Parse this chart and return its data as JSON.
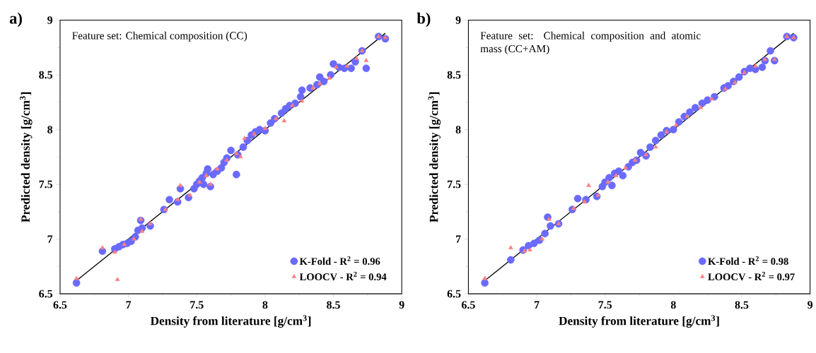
{
  "chart_data": [
    {
      "type": "scatter",
      "annotations": [
        "a)",
        "Feature set: Chemical composition (CC)"
      ],
      "xlabel": "Density from literature [g/cm$^{3}$]",
      "ylabel": "Predicted density [g/cm$^{3}$]",
      "xlim": [
        6.5,
        9
      ],
      "ylim": [
        6.5,
        9
      ],
      "xticks": [
        6.5,
        7,
        7.5,
        8,
        8.5,
        9
      ],
      "yticks": [
        6.5,
        7,
        7.5,
        8,
        8.5,
        9
      ],
      "legend": "bottom right",
      "series": [
        {
          "name": "K-Fold - R$^{2}$ = 0.96",
          "color": "#6a6aff",
          "marker": "circle",
          "x": [
            6.62,
            6.81,
            6.9,
            6.93,
            6.96,
            6.99,
            7.02,
            7.05,
            7.07,
            7.09,
            7.1,
            7.16,
            7.26,
            7.3,
            7.36,
            7.38,
            7.44,
            7.48,
            7.5,
            7.52,
            7.54,
            7.55,
            7.57,
            7.58,
            7.6,
            7.62,
            7.65,
            7.68,
            7.7,
            7.72,
            7.75,
            7.79,
            7.8,
            7.84,
            7.87,
            7.9,
            7.93,
            7.96,
            8.0,
            8.04,
            8.07,
            8.12,
            8.15,
            8.18,
            8.22,
            8.26,
            8.27,
            8.33,
            8.38,
            8.4,
            8.43,
            8.48,
            8.5,
            8.54,
            8.58,
            8.63,
            8.66,
            8.71,
            8.74,
            8.83,
            8.88
          ],
          "values": [
            6.6,
            6.89,
            6.91,
            6.93,
            6.95,
            6.96,
            6.98,
            7.02,
            7.08,
            7.17,
            7.1,
            7.12,
            7.27,
            7.36,
            7.34,
            7.46,
            7.38,
            7.46,
            7.5,
            7.53,
            7.56,
            7.5,
            7.6,
            7.64,
            7.48,
            7.59,
            7.62,
            7.65,
            7.7,
            7.74,
            7.81,
            7.59,
            7.77,
            7.84,
            7.9,
            7.95,
            7.98,
            8.0,
            7.99,
            8.06,
            8.1,
            8.15,
            8.19,
            8.22,
            8.24,
            8.3,
            8.36,
            8.38,
            8.41,
            8.48,
            8.44,
            8.5,
            8.6,
            8.57,
            8.56,
            8.56,
            8.62,
            8.72,
            8.56,
            8.85,
            8.83
          ]
        },
        {
          "name": "LOOCV - R$^{2}$ = 0.94",
          "color": "#ff7f7f",
          "marker": "triangle",
          "x": [
            6.62,
            6.81,
            6.9,
            6.92,
            6.97,
            7.04,
            7.09,
            7.1,
            7.16,
            7.27,
            7.36,
            7.38,
            7.45,
            7.52,
            7.57,
            7.6,
            7.65,
            7.72,
            7.79,
            7.82,
            7.85,
            7.92,
            8.0,
            8.08,
            8.14,
            8.2,
            8.27,
            8.35,
            8.4,
            8.47,
            8.52,
            8.6,
            8.67,
            8.71,
            8.74,
            8.83,
            8.88
          ],
          "values": [
            6.64,
            6.92,
            6.88,
            6.63,
            6.95,
            7.0,
            7.18,
            7.07,
            7.14,
            7.27,
            7.36,
            7.49,
            7.4,
            7.52,
            7.58,
            7.5,
            7.64,
            7.72,
            7.78,
            7.75,
            7.92,
            7.96,
            8.01,
            8.1,
            8.08,
            8.22,
            8.26,
            8.38,
            8.42,
            8.47,
            8.57,
            8.58,
            8.65,
            8.72,
            8.63,
            8.85,
            8.84
          ]
        },
        {
          "type": "line",
          "color": "#000000",
          "marker": "none",
          "x": [
            6.62,
            8.88
          ],
          "values": [
            6.62,
            8.88
          ]
        }
      ]
    },
    {
      "type": "scatter",
      "annotations": [
        "b)",
        "Feature set: Chemical composition and atomic mass (CC+AM)"
      ],
      "xlabel": "Density from literature [g/cm$^{3}$]",
      "ylabel": "Predicted density [g/cm$^{3}$]",
      "xlim": [
        6.5,
        9
      ],
      "ylim": [
        6.5,
        9
      ],
      "xticks": [
        6.5,
        7,
        7.5,
        8,
        8.5,
        9
      ],
      "yticks": [
        6.5,
        7,
        7.5,
        8,
        8.5,
        9
      ],
      "legend": "bottom right",
      "series": [
        {
          "name": "K-Fold - R$^{2}$ = 0.98",
          "color": "#6a6aff",
          "marker": "circle",
          "x": [
            6.62,
            6.81,
            6.9,
            6.94,
            6.98,
            7.02,
            7.06,
            7.08,
            7.1,
            7.16,
            7.26,
            7.3,
            7.36,
            7.44,
            7.48,
            7.5,
            7.53,
            7.55,
            7.57,
            7.6,
            7.63,
            7.67,
            7.7,
            7.73,
            7.76,
            7.8,
            7.83,
            7.87,
            7.91,
            7.95,
            8.0,
            8.04,
            8.08,
            8.12,
            8.16,
            8.21,
            8.25,
            8.3,
            8.37,
            8.4,
            8.44,
            8.48,
            8.52,
            8.56,
            8.6,
            8.65,
            8.67,
            8.71,
            8.74,
            8.83,
            8.88
          ],
          "values": [
            6.6,
            6.81,
            6.9,
            6.94,
            6.96,
            6.99,
            7.05,
            7.2,
            7.12,
            7.14,
            7.27,
            7.37,
            7.36,
            7.39,
            7.48,
            7.52,
            7.56,
            7.49,
            7.6,
            7.62,
            7.58,
            7.66,
            7.7,
            7.72,
            7.79,
            7.76,
            7.84,
            7.9,
            7.95,
            7.99,
            8.0,
            8.07,
            8.12,
            8.16,
            8.2,
            8.24,
            8.27,
            8.3,
            8.38,
            8.4,
            8.44,
            8.48,
            8.53,
            8.56,
            8.55,
            8.57,
            8.63,
            8.72,
            8.63,
            8.85,
            8.84
          ]
        },
        {
          "name": "LOOCV - R$^{2}$ = 0.97",
          "color": "#ff7f7f",
          "marker": "triangle",
          "x": [
            6.62,
            6.81,
            6.91,
            6.95,
            7.04,
            7.09,
            7.16,
            7.27,
            7.35,
            7.38,
            7.45,
            7.52,
            7.58,
            7.65,
            7.72,
            7.8,
            7.87,
            7.95,
            8.02,
            8.1,
            8.2,
            8.28,
            8.38,
            8.45,
            8.52,
            8.6,
            8.67,
            8.74,
            8.83,
            8.88
          ],
          "values": [
            6.64,
            6.92,
            6.89,
            6.9,
            7.0,
            7.18,
            7.14,
            7.28,
            7.34,
            7.49,
            7.4,
            7.52,
            7.58,
            7.65,
            7.72,
            7.77,
            7.84,
            7.98,
            8.04,
            8.12,
            8.2,
            8.28,
            8.37,
            8.43,
            8.52,
            8.58,
            8.64,
            8.64,
            8.85,
            8.84
          ]
        },
        {
          "type": "line",
          "color": "#000000",
          "marker": "none",
          "x": [
            6.62,
            8.88
          ],
          "values": [
            6.62,
            8.88
          ]
        }
      ]
    }
  ]
}
